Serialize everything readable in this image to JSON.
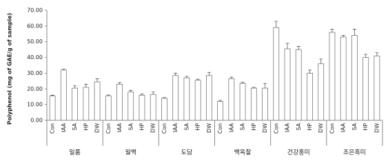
{
  "chart_data": {
    "type": "bar",
    "y_label": "Polyphenol (mg of GAE/g of sample)",
    "categories": [
      "Con",
      "IAA",
      "SA",
      "HP",
      "DW"
    ],
    "groups": [
      {
        "name": "일품",
        "values": [
          15.5,
          32,
          20.5,
          21,
          24.5
        ],
        "errors": [
          0.5,
          0.5,
          1.5,
          2,
          2
        ]
      },
      {
        "name": "월백",
        "values": [
          15.5,
          23,
          18,
          16,
          16.5
        ],
        "errors": [
          0.7,
          1,
          1,
          0.7,
          1.5
        ]
      },
      {
        "name": "도담",
        "values": [
          14,
          28.5,
          27,
          25.5,
          28.5
        ],
        "errors": [
          0.5,
          1.5,
          1,
          0.7,
          2
        ]
      },
      {
        "name": "백옥찰",
        "values": [
          12,
          26.5,
          23.5,
          20.5,
          20.5
        ],
        "errors": [
          0.7,
          1,
          0.7,
          0.5,
          3
        ]
      },
      {
        "name": "건강홍미",
        "values": [
          59,
          45.5,
          45,
          30,
          36
        ],
        "errors": [
          4,
          3.5,
          2,
          2,
          3
        ]
      },
      {
        "name": "조은흑미",
        "values": [
          56,
          53,
          54,
          40,
          41
        ],
        "errors": [
          2,
          1,
          4,
          2,
          2
        ]
      }
    ],
    "color": "#ffffff",
    "ylim": [
      0,
      70
    ],
    "yticks": [
      {
        "value": 0,
        "label": "0.00"
      },
      {
        "value": 10,
        "label": "10.00"
      },
      {
        "value": 20,
        "label": "20.00"
      },
      {
        "value": 30,
        "label": "30.00"
      },
      {
        "value": 40,
        "label": "40.00"
      },
      {
        "value": 50,
        "label": "50.00"
      },
      {
        "value": 60,
        "label": "60.00"
      },
      {
        "value": 70,
        "label": "70.00"
      }
    ]
  }
}
